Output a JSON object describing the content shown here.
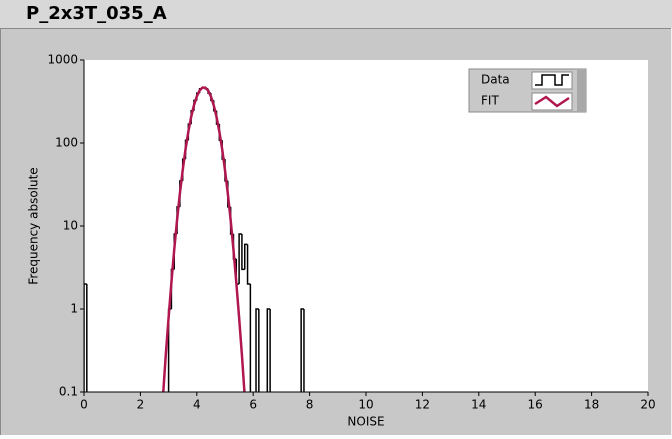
{
  "header": {
    "title": "P_2x3T_035_A"
  },
  "chart_data": {
    "type": "histogram",
    "xlabel": "NOISE",
    "ylabel": "Frequency absolute",
    "xlim": [
      0,
      20
    ],
    "xticks": [
      0,
      2,
      4,
      6,
      8,
      10,
      12,
      14,
      16,
      18,
      20
    ],
    "ylim": [
      0.1,
      1000
    ],
    "yticks": [
      0.1,
      1,
      10,
      100,
      1000
    ],
    "yscale": "log",
    "legend": "top-right",
    "bins": [
      0,
      0.1,
      0.2,
      0.3,
      0.4,
      0.5,
      0.6,
      0.7,
      0.8,
      0.9,
      1,
      1.1,
      1.2,
      1.3,
      1.4,
      1.5,
      1.6,
      1.7,
      1.8,
      1.9,
      2,
      2.1,
      2.2,
      2.3,
      2.4,
      2.5,
      2.6,
      2.7,
      2.8,
      2.9,
      3,
      3.1,
      3.2,
      3.3,
      3.4,
      3.5,
      3.6,
      3.7,
      3.8,
      3.9,
      4,
      4.1,
      4.2,
      4.3,
      4.4,
      4.5,
      4.6,
      4.7,
      4.8,
      4.9,
      5,
      5.1,
      5.2,
      5.3,
      5.4,
      5.5,
      5.6,
      5.7,
      5.8,
      5.9,
      6,
      6.1,
      6.2,
      6.3,
      6.4,
      6.5,
      6.6,
      6.7,
      6.8,
      6.9,
      7,
      7.1,
      7.2,
      7.3,
      7.4,
      7.5,
      7.6,
      7.7,
      7.8,
      7.9,
      8
    ],
    "series": [
      {
        "name": "Data",
        "color": "#000000",
        "values": [
          2,
          0,
          0,
          0,
          0,
          0,
          0,
          0,
          0,
          0,
          0,
          0,
          0,
          0,
          0,
          0,
          0,
          0,
          0,
          0,
          0,
          0,
          0,
          0,
          0,
          0,
          0,
          0,
          0,
          0,
          1,
          3,
          8,
          17,
          35,
          64,
          108,
          169,
          245,
          326,
          399,
          451,
          470,
          451,
          399,
          326,
          245,
          169,
          108,
          64,
          35,
          17,
          8,
          4,
          2,
          8,
          3,
          6,
          2,
          0,
          0,
          1,
          0,
          0,
          0,
          1,
          0,
          0,
          0,
          0,
          0,
          0,
          0,
          0,
          0,
          0,
          0,
          1,
          0,
          0
        ]
      },
      {
        "name": "FIT",
        "color": "#b0174f",
        "x": [
          2.8,
          2.9,
          3,
          3.1,
          3.2,
          3.3,
          3.4,
          3.5,
          3.6,
          3.7,
          3.8,
          3.9,
          4,
          4.1,
          4.2,
          4.3,
          4.4,
          4.5,
          4.6,
          4.7,
          4.8,
          4.9,
          5,
          5.1,
          5.2,
          5.3,
          5.4,
          5.5,
          5.6,
          5.7
        ],
        "values": [
          0.088,
          0.28,
          0.79,
          2.1,
          5.2,
          11.8,
          24.6,
          47,
          84,
          137,
          206,
          285,
          364,
          429,
          465,
          465,
          429,
          364,
          285,
          206,
          137,
          84,
          47,
          24.6,
          11.8,
          5.2,
          2.1,
          0.79,
          0.28,
          0.088
        ]
      }
    ]
  }
}
